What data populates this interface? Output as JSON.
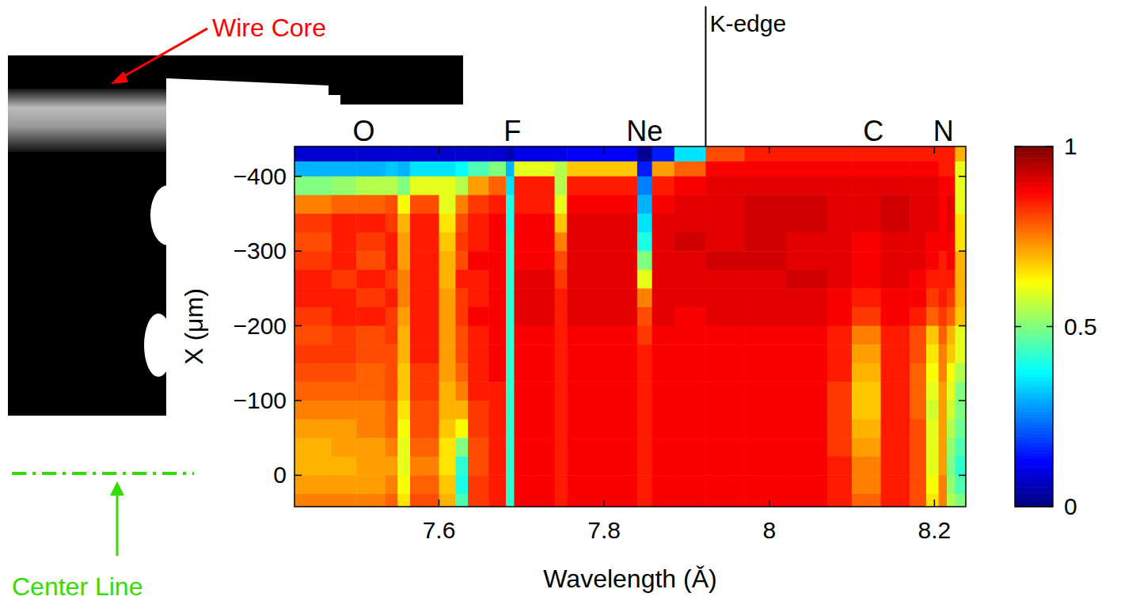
{
  "chart_data": {
    "type": "heatmap",
    "x_label": "Wavelength (Ǎ)",
    "y_label": "X (μm)",
    "xlim": [
      7.425,
      8.238
    ],
    "xticks": [
      7.6,
      7.8,
      8,
      8.2
    ],
    "ylim": [
      -440,
      42
    ],
    "yticks": [
      {
        "value": -400,
        "label": "−400"
      },
      {
        "value": -300,
        "label": "−300"
      },
      {
        "value": -200,
        "label": "−200"
      },
      {
        "value": -100,
        "label": "−100"
      },
      0
    ],
    "x_edges": [
      7.425,
      7.47,
      7.5,
      7.535,
      7.55,
      7.565,
      7.6,
      7.62,
      7.635,
      7.66,
      7.681,
      7.691,
      7.74,
      7.755,
      7.84,
      7.858,
      7.885,
      7.923,
      7.97,
      8.02,
      8.07,
      8.1,
      8.135,
      8.17,
      8.19,
      8.205,
      8.215,
      8.225,
      8.238
    ],
    "y_edges": [
      -440,
      -420,
      -400,
      -375,
      -350,
      -325,
      -300,
      -275,
      -250,
      -225,
      -200,
      -175,
      -150,
      -125,
      -100,
      -75,
      -50,
      -25,
      0,
      25,
      42
    ],
    "cells": [
      [
        0.08,
        0.08,
        0.08,
        0.08,
        0.08,
        0.08,
        0.08,
        0.08,
        0.08,
        0.08,
        0.05,
        0.1,
        0.1,
        0.12,
        0.02,
        0.15,
        0.35,
        0.8,
        0.85,
        0.85,
        0.85,
        0.85,
        0.85,
        0.85,
        0.85,
        0.85,
        0.85,
        0.7
      ],
      [
        0.3,
        0.3,
        0.3,
        0.32,
        0.3,
        0.35,
        0.35,
        0.38,
        0.45,
        0.5,
        0.3,
        0.6,
        0.55,
        0.68,
        0.15,
        0.72,
        0.78,
        0.88,
        0.88,
        0.88,
        0.88,
        0.88,
        0.88,
        0.88,
        0.88,
        0.85,
        0.85,
        0.6
      ],
      [
        0.5,
        0.52,
        0.55,
        0.55,
        0.5,
        0.6,
        0.6,
        0.55,
        0.72,
        0.78,
        0.35,
        0.85,
        0.55,
        0.85,
        0.25,
        0.85,
        0.88,
        0.9,
        0.9,
        0.9,
        0.9,
        0.9,
        0.9,
        0.9,
        0.9,
        0.88,
        0.88,
        0.6
      ],
      [
        0.75,
        0.78,
        0.78,
        0.8,
        0.62,
        0.8,
        0.6,
        0.75,
        0.82,
        0.85,
        0.4,
        0.85,
        0.6,
        0.88,
        0.3,
        0.88,
        0.9,
        0.9,
        0.92,
        0.92,
        0.9,
        0.9,
        0.92,
        0.9,
        0.9,
        0.88,
        0.9,
        0.6
      ],
      [
        0.82,
        0.85,
        0.85,
        0.82,
        0.7,
        0.85,
        0.65,
        0.8,
        0.85,
        0.88,
        0.4,
        0.88,
        0.68,
        0.9,
        0.35,
        0.9,
        0.9,
        0.9,
        0.92,
        0.92,
        0.9,
        0.9,
        0.92,
        0.9,
        0.9,
        0.88,
        0.9,
        0.65
      ],
      [
        0.8,
        0.85,
        0.82,
        0.85,
        0.72,
        0.85,
        0.68,
        0.82,
        0.85,
        0.88,
        0.42,
        0.88,
        0.75,
        0.9,
        0.4,
        0.9,
        0.92,
        0.9,
        0.92,
        0.9,
        0.9,
        0.88,
        0.9,
        0.9,
        0.88,
        0.88,
        0.88,
        0.65
      ],
      [
        0.82,
        0.85,
        0.8,
        0.85,
        0.72,
        0.85,
        0.7,
        0.8,
        0.88,
        0.88,
        0.42,
        0.88,
        0.8,
        0.9,
        0.5,
        0.9,
        0.9,
        0.92,
        0.92,
        0.9,
        0.9,
        0.88,
        0.9,
        0.9,
        0.88,
        0.85,
        0.88,
        0.7
      ],
      [
        0.85,
        0.82,
        0.85,
        0.82,
        0.75,
        0.85,
        0.7,
        0.85,
        0.85,
        0.88,
        0.42,
        0.9,
        0.82,
        0.9,
        0.6,
        0.9,
        0.9,
        0.9,
        0.9,
        0.92,
        0.9,
        0.88,
        0.9,
        0.88,
        0.85,
        0.85,
        0.85,
        0.7
      ],
      [
        0.85,
        0.85,
        0.82,
        0.85,
        0.75,
        0.85,
        0.72,
        0.82,
        0.85,
        0.88,
        0.42,
        0.9,
        0.85,
        0.9,
        0.75,
        0.9,
        0.9,
        0.9,
        0.9,
        0.9,
        0.88,
        0.85,
        0.88,
        0.88,
        0.82,
        0.85,
        0.82,
        0.7
      ],
      [
        0.82,
        0.85,
        0.85,
        0.82,
        0.72,
        0.85,
        0.72,
        0.82,
        0.88,
        0.88,
        0.42,
        0.9,
        0.85,
        0.9,
        0.8,
        0.9,
        0.88,
        0.9,
        0.9,
        0.9,
        0.88,
        0.82,
        0.88,
        0.85,
        0.78,
        0.82,
        0.78,
        0.68
      ],
      [
        0.8,
        0.82,
        0.8,
        0.82,
        0.7,
        0.85,
        0.72,
        0.8,
        0.85,
        0.88,
        0.42,
        0.88,
        0.85,
        0.88,
        0.82,
        0.88,
        0.88,
        0.88,
        0.88,
        0.88,
        0.85,
        0.75,
        0.85,
        0.8,
        0.68,
        0.78,
        0.7,
        0.6
      ],
      [
        0.82,
        0.82,
        0.8,
        0.8,
        0.7,
        0.85,
        0.72,
        0.8,
        0.85,
        0.88,
        0.42,
        0.88,
        0.85,
        0.88,
        0.85,
        0.88,
        0.88,
        0.88,
        0.88,
        0.88,
        0.85,
        0.72,
        0.85,
        0.8,
        0.65,
        0.75,
        0.68,
        0.6
      ],
      [
        0.8,
        0.8,
        0.78,
        0.8,
        0.68,
        0.82,
        0.72,
        0.78,
        0.85,
        0.88,
        0.42,
        0.88,
        0.85,
        0.88,
        0.85,
        0.88,
        0.88,
        0.88,
        0.88,
        0.88,
        0.85,
        0.7,
        0.85,
        0.78,
        0.62,
        0.75,
        0.62,
        0.55
      ],
      [
        0.78,
        0.78,
        0.78,
        0.8,
        0.68,
        0.82,
        0.7,
        0.75,
        0.85,
        0.85,
        0.42,
        0.88,
        0.85,
        0.88,
        0.85,
        0.88,
        0.88,
        0.88,
        0.88,
        0.88,
        0.82,
        0.68,
        0.85,
        0.78,
        0.6,
        0.72,
        0.6,
        0.5
      ],
      [
        0.75,
        0.75,
        0.75,
        0.78,
        0.65,
        0.8,
        0.7,
        0.7,
        0.82,
        0.85,
        0.42,
        0.88,
        0.85,
        0.88,
        0.85,
        0.88,
        0.88,
        0.88,
        0.88,
        0.88,
        0.82,
        0.68,
        0.85,
        0.78,
        0.58,
        0.72,
        0.58,
        0.5
      ],
      [
        0.72,
        0.72,
        0.75,
        0.78,
        0.62,
        0.8,
        0.68,
        0.62,
        0.82,
        0.85,
        0.42,
        0.88,
        0.85,
        0.88,
        0.85,
        0.88,
        0.88,
        0.88,
        0.88,
        0.88,
        0.82,
        0.7,
        0.85,
        0.8,
        0.6,
        0.72,
        0.55,
        0.48
      ],
      [
        0.7,
        0.72,
        0.72,
        0.75,
        0.6,
        0.78,
        0.65,
        0.5,
        0.8,
        0.85,
        0.42,
        0.88,
        0.85,
        0.88,
        0.85,
        0.88,
        0.88,
        0.88,
        0.88,
        0.88,
        0.82,
        0.72,
        0.85,
        0.8,
        0.6,
        0.72,
        0.52,
        0.45
      ],
      [
        0.7,
        0.7,
        0.72,
        0.72,
        0.6,
        0.75,
        0.65,
        0.42,
        0.8,
        0.85,
        0.42,
        0.88,
        0.85,
        0.88,
        0.85,
        0.88,
        0.88,
        0.88,
        0.88,
        0.88,
        0.85,
        0.75,
        0.85,
        0.8,
        0.6,
        0.72,
        0.5,
        0.42
      ],
      [
        0.72,
        0.72,
        0.72,
        0.75,
        0.62,
        0.78,
        0.68,
        0.4,
        0.82,
        0.85,
        0.42,
        0.88,
        0.85,
        0.88,
        0.85,
        0.88,
        0.88,
        0.88,
        0.88,
        0.88,
        0.85,
        0.75,
        0.85,
        0.8,
        0.62,
        0.75,
        0.52,
        0.45
      ],
      [
        0.75,
        0.75,
        0.75,
        0.78,
        0.65,
        0.8,
        0.7,
        0.45,
        0.82,
        0.85,
        0.42,
        0.88,
        0.85,
        0.88,
        0.85,
        0.88,
        0.88,
        0.88,
        0.88,
        0.88,
        0.85,
        0.78,
        0.85,
        0.8,
        0.65,
        0.75,
        0.55,
        0.5
      ]
    ],
    "colorbar_range": [
      0,
      1
    ],
    "colorbar_ticks": [
      0,
      0.5,
      1
    ],
    "line_labels": [
      {
        "text": "O",
        "x": 7.509
      },
      {
        "text": "F",
        "x": 7.689
      },
      {
        "text": "Ne",
        "x": 7.849
      },
      {
        "text": "C",
        "x": 8.126
      },
      {
        "text": "N",
        "x": 8.211
      }
    ],
    "k_edge": {
      "text": "K-edge",
      "x": 7.923
    },
    "image_labels": {
      "wire_core": "Wire Core",
      "center_line": "Center Line"
    }
  }
}
